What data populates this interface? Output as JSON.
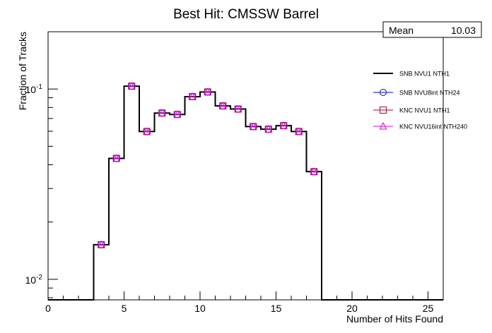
{
  "chart_data": {
    "type": "line",
    "title": "Best Hit: CMSSW Barrel",
    "xlabel": "Number of Hits Found",
    "ylabel": "Fraction of Tracks",
    "xlim": [
      0,
      26
    ],
    "ylim": [
      0.0078,
      0.2
    ],
    "yscale": "log",
    "xticks": [
      0,
      5,
      10,
      15,
      20,
      25
    ],
    "xtick_labels": [
      "0",
      "5",
      "10",
      "15",
      "20",
      "25"
    ],
    "yticks": [
      0.01,
      0.1
    ],
    "ytick_labels": [
      {
        "base": "10",
        "exp": "-2"
      },
      {
        "base": "10",
        "exp": "-1"
      }
    ],
    "stats": {
      "label": "Mean",
      "value": "10.03"
    },
    "legend_position": "right",
    "bin_width": 1,
    "x": [
      3.5,
      4.5,
      5.5,
      6.5,
      7.5,
      8.5,
      9.5,
      10.5,
      11.5,
      12.5,
      13.5,
      14.5,
      15.5,
      16.5,
      17.5
    ],
    "series": [
      {
        "name": "SNB NVU1 NTH1",
        "marker": "line",
        "color": "#000000",
        "values": [
          0.0152,
          0.0432,
          0.1035,
          0.0598,
          0.0748,
          0.0735,
          0.0912,
          0.0965,
          0.0815,
          0.0785,
          0.0635,
          0.0615,
          0.0642,
          0.0598,
          0.0368
        ]
      },
      {
        "name": "SNB NVU8int NTH24",
        "marker": "circle",
        "color": "#0000ff",
        "values": [
          0.0152,
          0.0432,
          0.1035,
          0.0598,
          0.0748,
          0.0735,
          0.0912,
          0.0965,
          0.0815,
          0.0785,
          0.0635,
          0.0615,
          0.0642,
          0.0598,
          0.0368
        ]
      },
      {
        "name": "KNC NVU1 NTH1",
        "marker": "square",
        "color": "#b3002b",
        "values": [
          0.0152,
          0.0432,
          0.1035,
          0.0598,
          0.0748,
          0.0735,
          0.0912,
          0.0965,
          0.0815,
          0.0785,
          0.0635,
          0.0615,
          0.0642,
          0.0598,
          0.0368
        ]
      },
      {
        "name": "KNC NVU16int NTH240",
        "marker": "triangle",
        "color": "#e000e0",
        "values": [
          0.0152,
          0.0432,
          0.1035,
          0.0598,
          0.0748,
          0.0735,
          0.0912,
          0.0965,
          0.0815,
          0.0785,
          0.0635,
          0.0615,
          0.0642,
          0.0598,
          0.0368
        ]
      }
    ]
  }
}
